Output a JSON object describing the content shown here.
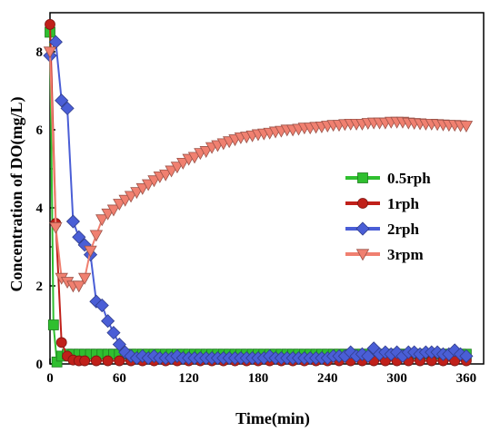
{
  "chart_data": {
    "type": "line",
    "title": "",
    "xlabel": "Time(min)",
    "ylabel": "Concentration of DO(mg/L)",
    "xlim": [
      0,
      375
    ],
    "ylim": [
      0,
      9
    ],
    "xticks": [
      "0",
      "60",
      "120",
      "180",
      "240",
      "300",
      "360"
    ],
    "yticks": [
      "0",
      "2",
      "4",
      "6",
      "8"
    ],
    "grid": false,
    "legend_position": "right",
    "series": [
      {
        "name": "0.5rph",
        "color": "#2fbf2f",
        "marker": "square",
        "x": [
          0,
          3,
          6,
          10,
          15,
          20,
          25,
          30,
          35,
          40,
          45,
          50,
          55,
          60,
          65,
          70,
          75,
          80,
          85,
          90,
          95,
          100,
          105,
          110,
          115,
          120,
          125,
          130,
          135,
          140,
          145,
          150,
          155,
          160,
          165,
          170,
          175,
          180,
          185,
          190,
          195,
          200,
          205,
          210,
          215,
          220,
          225,
          230,
          235,
          240,
          245,
          250,
          255,
          260,
          265,
          270,
          275,
          280,
          285,
          290,
          295,
          300,
          305,
          310,
          315,
          320,
          325,
          330,
          335,
          340,
          345,
          350,
          355,
          360
        ],
        "y": [
          8.5,
          1.0,
          0.05,
          0.2,
          0.25,
          0.25,
          0.25,
          0.25,
          0.25,
          0.25,
          0.25,
          0.25,
          0.25,
          0.25,
          0.25,
          0.25,
          0.25,
          0.25,
          0.25,
          0.25,
          0.25,
          0.25,
          0.25,
          0.25,
          0.25,
          0.25,
          0.25,
          0.25,
          0.25,
          0.25,
          0.25,
          0.25,
          0.25,
          0.25,
          0.25,
          0.25,
          0.25,
          0.25,
          0.25,
          0.25,
          0.25,
          0.25,
          0.25,
          0.25,
          0.25,
          0.25,
          0.25,
          0.25,
          0.25,
          0.25,
          0.25,
          0.25,
          0.25,
          0.25,
          0.25,
          0.25,
          0.25,
          0.25,
          0.25,
          0.25,
          0.25,
          0.25,
          0.25,
          0.25,
          0.25,
          0.25,
          0.25,
          0.25,
          0.25,
          0.25,
          0.25,
          0.25,
          0.25,
          0.25
        ]
      },
      {
        "name": "1rph",
        "color": "#c0201a",
        "marker": "circle",
        "x": [
          0,
          5,
          10,
          15,
          20,
          25,
          30,
          40,
          50,
          60,
          70,
          80,
          90,
          100,
          110,
          120,
          130,
          140,
          150,
          160,
          170,
          180,
          190,
          200,
          210,
          220,
          230,
          240,
          250,
          260,
          270,
          280,
          290,
          300,
          310,
          320,
          330,
          340,
          350,
          360
        ],
        "y": [
          8.7,
          3.6,
          0.55,
          0.2,
          0.1,
          0.08,
          0.08,
          0.08,
          0.08,
          0.08,
          0.08,
          0.08,
          0.08,
          0.08,
          0.08,
          0.08,
          0.08,
          0.08,
          0.08,
          0.08,
          0.08,
          0.08,
          0.08,
          0.08,
          0.08,
          0.08,
          0.08,
          0.08,
          0.08,
          0.08,
          0.08,
          0.08,
          0.08,
          0.08,
          0.08,
          0.08,
          0.08,
          0.08,
          0.08,
          0.08
        ]
      },
      {
        "name": "2rph",
        "color": "#4a5ed6",
        "marker": "diamond",
        "x": [
          0,
          5,
          10,
          15,
          20,
          25,
          30,
          35,
          40,
          45,
          50,
          55,
          60,
          65,
          70,
          75,
          80,
          85,
          90,
          95,
          100,
          105,
          110,
          115,
          120,
          125,
          130,
          135,
          140,
          145,
          150,
          155,
          160,
          165,
          170,
          175,
          180,
          185,
          190,
          195,
          200,
          205,
          210,
          215,
          220,
          225,
          230,
          235,
          240,
          245,
          250,
          255,
          260,
          265,
          270,
          275,
          280,
          285,
          290,
          295,
          300,
          305,
          310,
          315,
          320,
          325,
          330,
          335,
          340,
          345,
          350,
          355,
          360
        ],
        "y": [
          7.9,
          8.25,
          6.75,
          6.55,
          3.65,
          3.25,
          3.05,
          2.8,
          1.6,
          1.5,
          1.1,
          0.8,
          0.5,
          0.3,
          0.2,
          0.15,
          0.2,
          0.15,
          0.2,
          0.15,
          0.15,
          0.15,
          0.2,
          0.15,
          0.15,
          0.15,
          0.15,
          0.15,
          0.15,
          0.15,
          0.15,
          0.15,
          0.15,
          0.15,
          0.15,
          0.15,
          0.15,
          0.15,
          0.2,
          0.15,
          0.15,
          0.15,
          0.15,
          0.15,
          0.15,
          0.15,
          0.15,
          0.15,
          0.15,
          0.2,
          0.2,
          0.2,
          0.3,
          0.2,
          0.25,
          0.2,
          0.4,
          0.25,
          0.3,
          0.25,
          0.3,
          0.2,
          0.3,
          0.3,
          0.25,
          0.3,
          0.3,
          0.3,
          0.25,
          0.25,
          0.35,
          0.25,
          0.2
        ]
      },
      {
        "name": "3rpm",
        "color": "#f08070",
        "marker": "triangle-down",
        "x": [
          0,
          5,
          10,
          15,
          20,
          25,
          30,
          35,
          40,
          45,
          50,
          55,
          60,
          65,
          70,
          75,
          80,
          85,
          90,
          95,
          100,
          105,
          110,
          115,
          120,
          125,
          130,
          135,
          140,
          145,
          150,
          155,
          160,
          165,
          170,
          175,
          180,
          185,
          190,
          195,
          200,
          205,
          210,
          215,
          220,
          225,
          230,
          235,
          240,
          245,
          250,
          255,
          260,
          265,
          270,
          275,
          280,
          285,
          290,
          295,
          300,
          305,
          310,
          315,
          320,
          325,
          330,
          335,
          340,
          345,
          350,
          355,
          360
        ],
        "y": [
          8.0,
          3.5,
          2.2,
          2.1,
          2.0,
          2.0,
          2.2,
          2.9,
          3.3,
          3.7,
          3.85,
          3.95,
          4.1,
          4.2,
          4.3,
          4.4,
          4.5,
          4.6,
          4.7,
          4.8,
          4.85,
          4.95,
          5.05,
          5.15,
          5.25,
          5.3,
          5.4,
          5.45,
          5.55,
          5.6,
          5.65,
          5.7,
          5.75,
          5.8,
          5.82,
          5.85,
          5.88,
          5.9,
          5.92,
          5.95,
          5.97,
          6.0,
          6.0,
          6.02,
          6.05,
          6.05,
          6.07,
          6.08,
          6.1,
          6.12,
          6.12,
          6.14,
          6.15,
          6.15,
          6.15,
          6.17,
          6.18,
          6.18,
          6.18,
          6.2,
          6.2,
          6.2,
          6.18,
          6.17,
          6.16,
          6.15,
          6.15,
          6.14,
          6.13,
          6.12,
          6.12,
          6.11,
          6.1
        ]
      }
    ]
  }
}
